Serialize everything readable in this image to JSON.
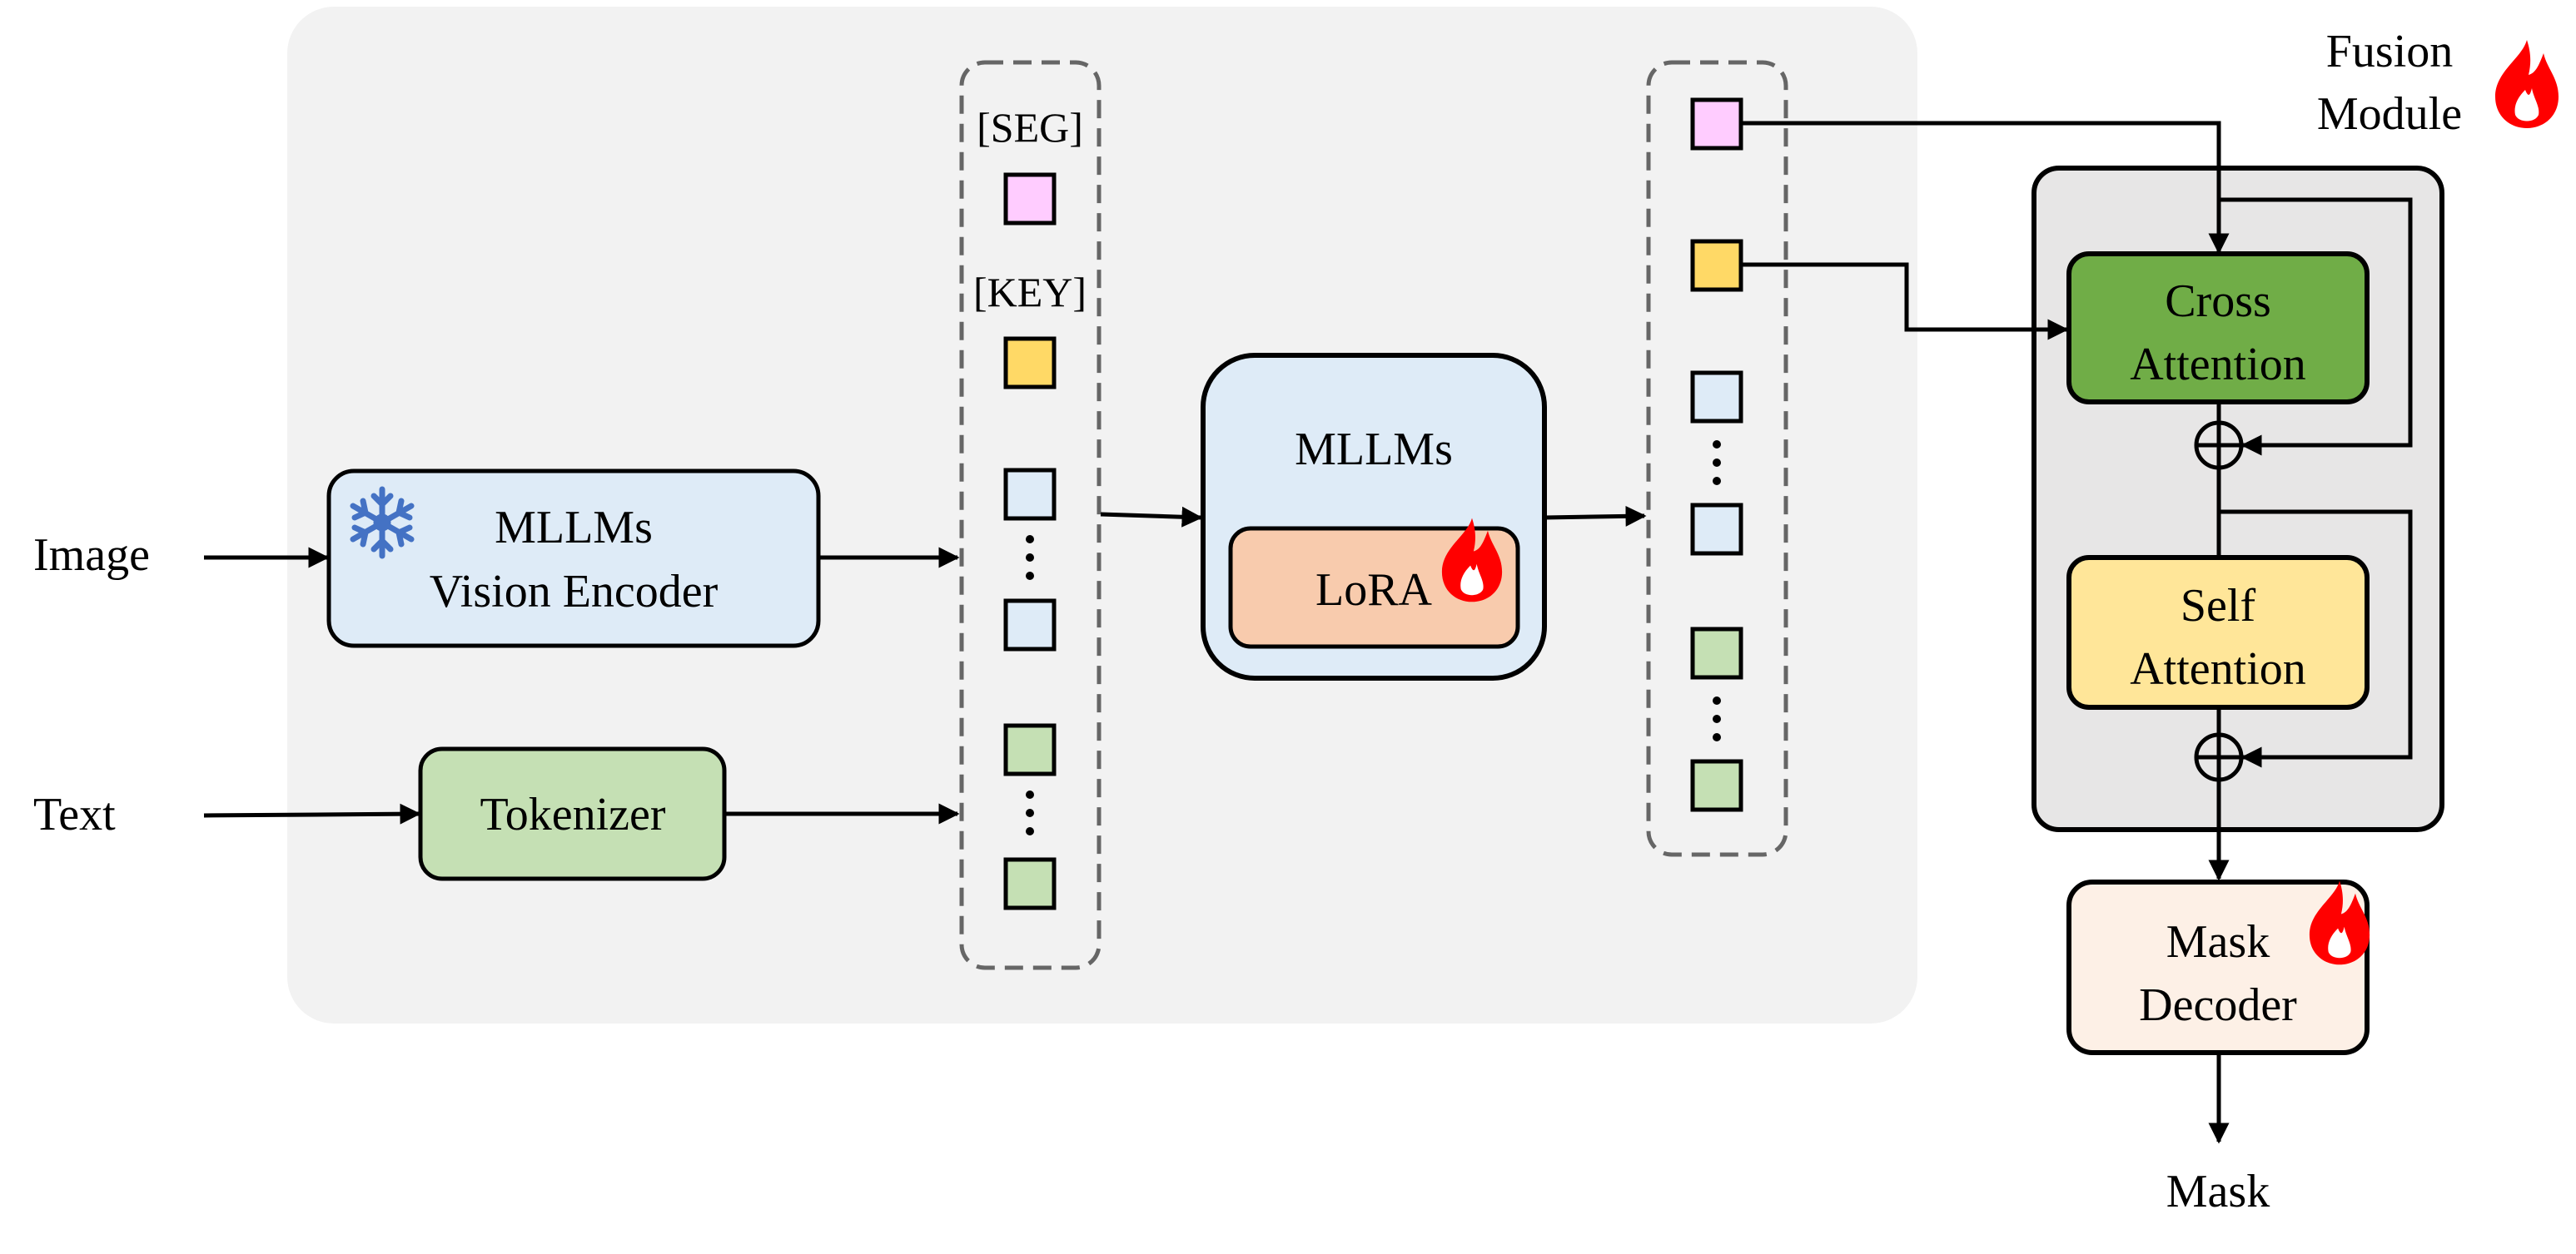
{
  "inputs": {
    "image": "Image",
    "text": "Text"
  },
  "encoder": {
    "line1": "MLLMs",
    "line2": "Vision Encoder",
    "icon": "snowflake-icon"
  },
  "tokenizer": {
    "label": "Tokenizer"
  },
  "tokens": {
    "seg": "[SEG]",
    "key": "[KEY]"
  },
  "mllm": {
    "label": "MLLMs",
    "lora": "LoRA"
  },
  "fusion": {
    "title_line1": "Fusion",
    "title_line2": "Module",
    "cross_line1": "Cross",
    "cross_line2": "Attention",
    "self_line1": "Self",
    "self_line2": "Attention"
  },
  "decoder": {
    "line1": "Mask",
    "line2": "Decoder"
  },
  "output": {
    "label": "Mask"
  },
  "colors": {
    "background_panel": "#f2f2f2",
    "encoder": "#deebf7",
    "tokenizer": "#c5e0b4",
    "seg_token": "#ffccff",
    "key_token": "#ffd966",
    "image_token": "#deebf7",
    "text_token": "#c5e0b4",
    "mllm": "#deebf7",
    "lora": "#f8cbad",
    "fusion_panel": "#e7e6e6",
    "cross_attention": "#70ad47",
    "self_attention": "#ffe699",
    "mask_decoder": "#fdf0e6",
    "flame": "#ff0000",
    "snowflake": "#4472c4"
  }
}
